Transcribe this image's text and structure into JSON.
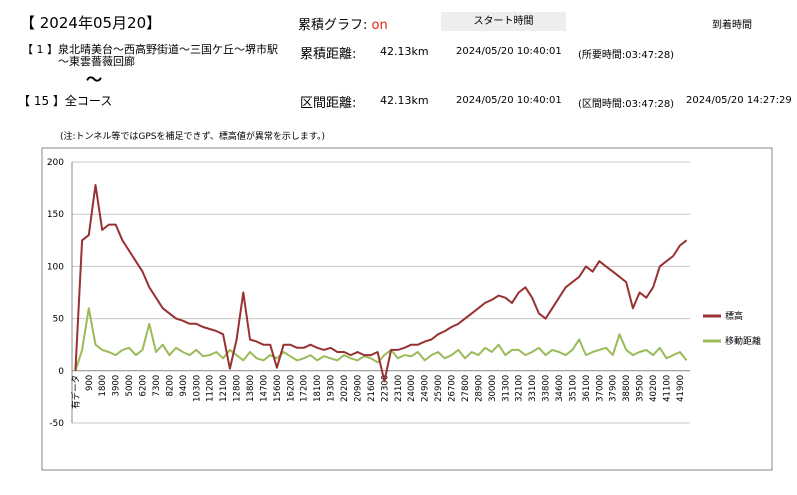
{
  "header": {
    "date_title": "【 2024年05月20】",
    "graph_label": "累積グラフ:",
    "graph_state": "on",
    "start_header": "スタート時間",
    "arrival_header": "到着時間",
    "route_1": "【 1 】泉北晴美台～西高野街道～三国ケ丘～堺市駅",
    "route_1_cont": "～東雲薔薇回廊",
    "route_sep": "～",
    "route_2": "【 15 】全コース",
    "rows": [
      {
        "label": "累積距離:",
        "distance": "42.13km",
        "start": "2024/05/20 10:40:01",
        "time": "(所要時間:03:47:28)"
      },
      {
        "label": "区間距離:",
        "distance": "42.13km",
        "start": "2024/05/20 10:40:01",
        "time": "(区間時間:03:47:28)",
        "arrival": "2024/05/20 14:27:29"
      }
    ],
    "note": "(注:トンネル等ではGPSを補足できず、標高値が異常を示します。)"
  },
  "chart_data": {
    "type": "line",
    "categories": [
      "有データ",
      null,
      "900",
      null,
      "1800",
      null,
      "3900",
      null,
      "5000",
      null,
      "6200",
      null,
      "7300",
      null,
      "8200",
      null,
      "9400",
      null,
      "10300",
      null,
      "11200",
      null,
      "12100",
      null,
      "12800",
      null,
      "13800",
      null,
      "14700",
      null,
      "15600",
      null,
      "16200",
      null,
      "17200",
      null,
      "18100",
      null,
      "19300",
      null,
      "20200",
      null,
      "20900",
      null,
      "21600",
      null,
      "22300",
      null,
      "23100",
      null,
      "24000",
      null,
      "24900",
      null,
      "25900",
      null,
      "26700",
      null,
      "27800",
      null,
      "28900",
      null,
      "30000",
      null,
      "31300",
      null,
      "32100",
      null,
      "33100",
      null,
      "33800",
      null,
      "34600",
      null,
      "35100",
      null,
      "36100",
      null,
      "37000",
      null,
      "37900",
      null,
      "38800",
      null,
      "39500",
      null,
      "40200",
      null,
      "41100",
      null,
      "41900",
      null
    ],
    "series": [
      {
        "name": "標高",
        "color": "#983232",
        "values": [
          0,
          125,
          130,
          178,
          135,
          140,
          140,
          125,
          115,
          105,
          95,
          80,
          70,
          60,
          55,
          50,
          48,
          45,
          45,
          42,
          40,
          38,
          35,
          2,
          30,
          75,
          30,
          28,
          25,
          25,
          3,
          25,
          25,
          22,
          22,
          25,
          22,
          20,
          22,
          18,
          18,
          15,
          18,
          15,
          15,
          18,
          -10,
          20,
          20,
          22,
          25,
          25,
          28,
          30,
          35,
          38,
          42,
          45,
          50,
          55,
          60,
          65,
          68,
          72,
          70,
          65,
          75,
          80,
          70,
          55,
          50,
          60,
          70,
          80,
          85,
          90,
          100,
          95,
          105,
          100,
          95,
          90,
          85,
          60,
          75,
          70,
          80,
          100,
          105,
          110,
          120,
          125
        ]
      },
      {
        "name": "移動距離",
        "color": "#9bbb59",
        "values": [
          0,
          20,
          60,
          25,
          20,
          18,
          15,
          20,
          22,
          15,
          20,
          45,
          18,
          25,
          15,
          22,
          18,
          15,
          20,
          14,
          15,
          18,
          12,
          20,
          15,
          10,
          18,
          12,
          10,
          15,
          12,
          18,
          14,
          10,
          12,
          15,
          10,
          14,
          12,
          10,
          15,
          12,
          10,
          14,
          12,
          8,
          15,
          20,
          12,
          15,
          14,
          18,
          10,
          15,
          18,
          12,
          15,
          20,
          12,
          18,
          15,
          22,
          18,
          25,
          15,
          20,
          20,
          15,
          18,
          22,
          15,
          20,
          18,
          15,
          20,
          30,
          15,
          18,
          20,
          22,
          15,
          35,
          20,
          15,
          18,
          20,
          15,
          22,
          12,
          15,
          18,
          10
        ]
      }
    ],
    "ylim": [
      -50,
      200
    ],
    "yticks": [
      -50,
      0,
      50,
      100,
      150,
      200
    ],
    "grid": true,
    "legend": "right"
  }
}
